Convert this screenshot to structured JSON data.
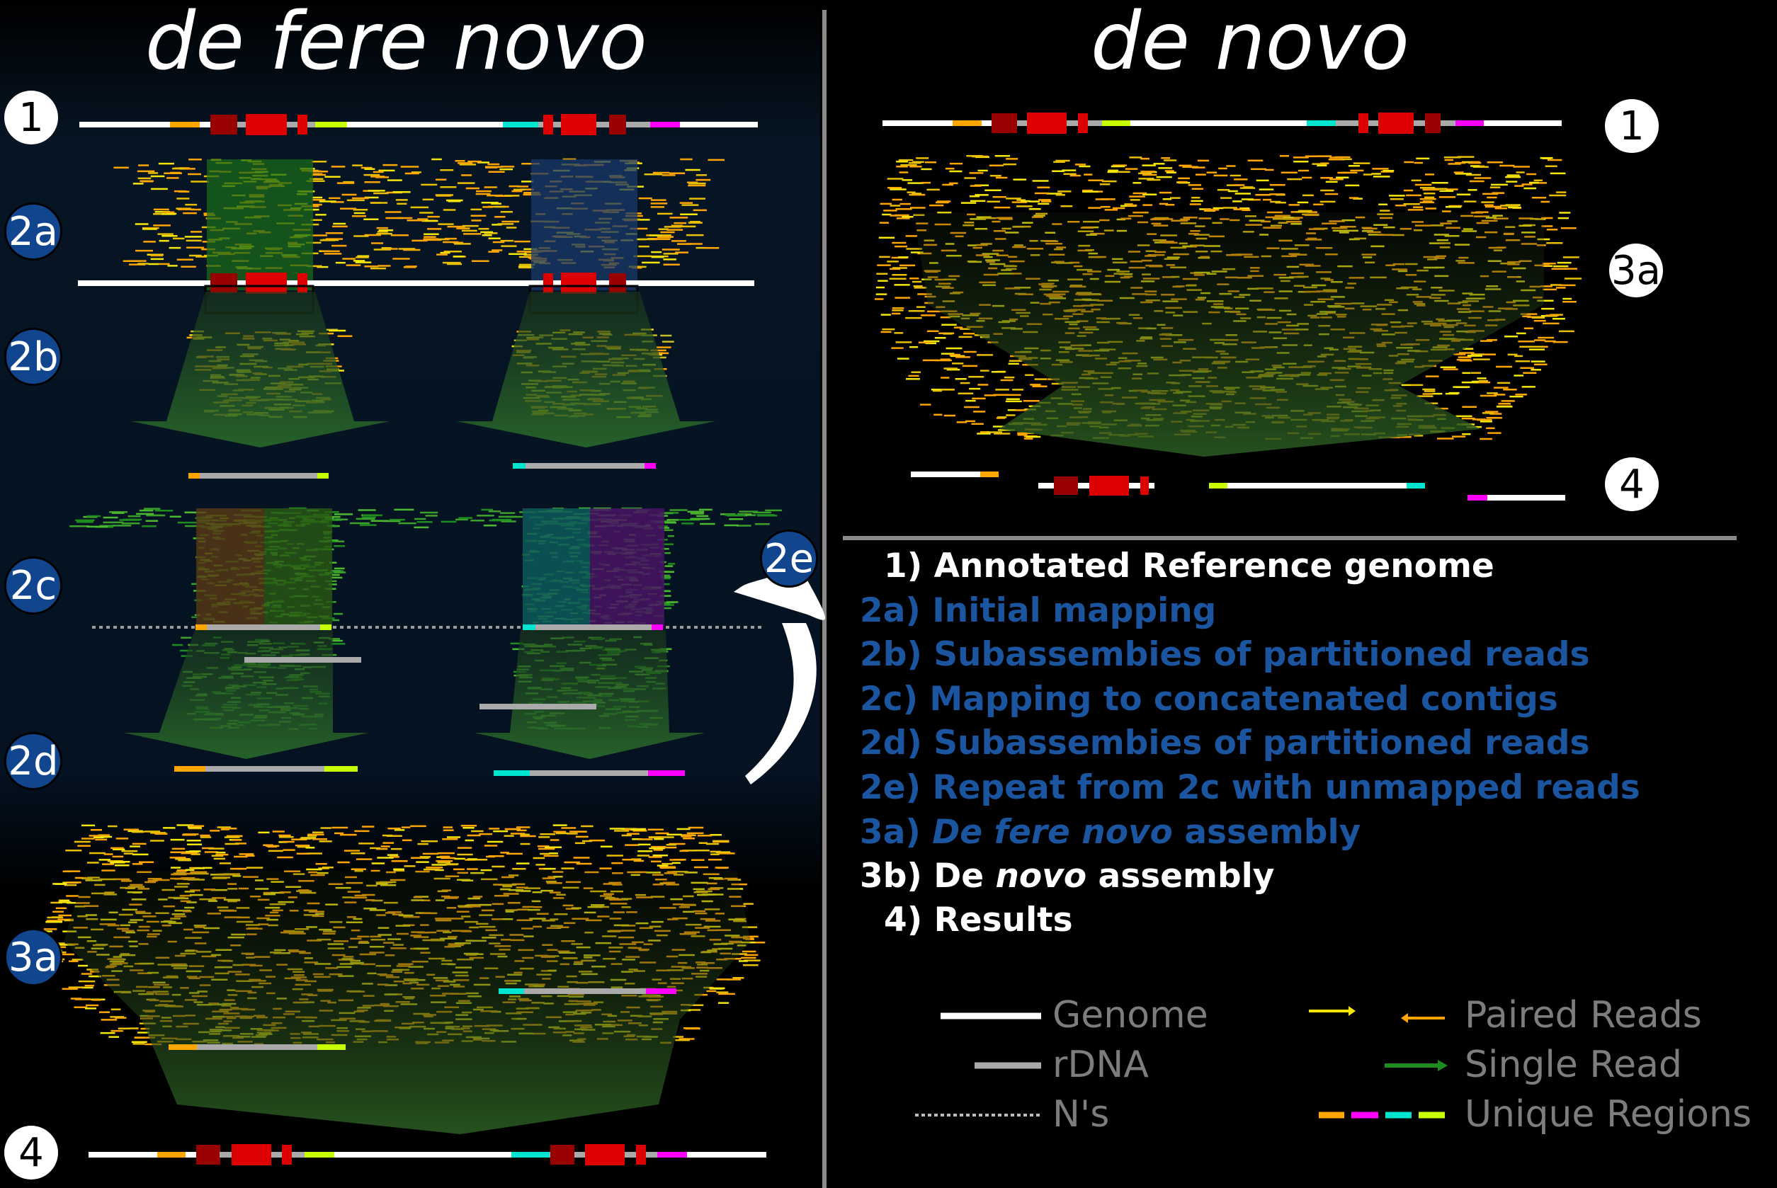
{
  "titles": {
    "left": "de fere novo",
    "right": "de novo"
  },
  "badges": {
    "b1_left": "1",
    "b2a": "2a",
    "b2b": "2b",
    "b2c": "2c",
    "b2d": "2d",
    "b2e": "2e",
    "b3a_left": "3a",
    "b4_left": "4",
    "b1_right": "1",
    "b3a_right": "3a",
    "b4_right": "4"
  },
  "steps": [
    {
      "num": "1)",
      "text": "Annotated Reference genome",
      "color": "white"
    },
    {
      "num": "2a)",
      "text": "Initial mapping",
      "color": "blue"
    },
    {
      "num": "2b)",
      "text": "Subassembies of partitioned reads",
      "color": "blue"
    },
    {
      "num": "2c)",
      "text": "Mapping to concatenated contigs",
      "color": "blue"
    },
    {
      "num": "2d)",
      "text": "Subassembies of partitioned reads",
      "color": "blue"
    },
    {
      "num": "2e)",
      "text": "Repeat from 2c with unmapped reads",
      "color": "blue"
    },
    {
      "num": "3a)",
      "text_italic": "De fere novo",
      "text_after": " assembly",
      "color": "blue"
    },
    {
      "num": "3b)",
      "text_before": "De ",
      "text_italic": "novo",
      "text_after": " assembly",
      "color": "white"
    },
    {
      "num": "4)",
      "text": "Results",
      "color": "white"
    }
  ],
  "legend": {
    "genome": "Genome",
    "rdna": "rDNA",
    "ns": "N's",
    "paired": "Paired Reads",
    "single": "Single Read",
    "unique": "Unique Regions"
  },
  "colors": {
    "orange": "#ffa500",
    "magenta": "#ff00ff",
    "cyan": "#00e5cf",
    "lime": "#c8ff00",
    "darkred": "#990000",
    "red": "#dd0000",
    "gray": "#aaaaaa",
    "yellow": "#f5e60a",
    "green": "#1e8c1e",
    "badge_blue": "#11468f",
    "step_blue": "#1b55a0"
  }
}
